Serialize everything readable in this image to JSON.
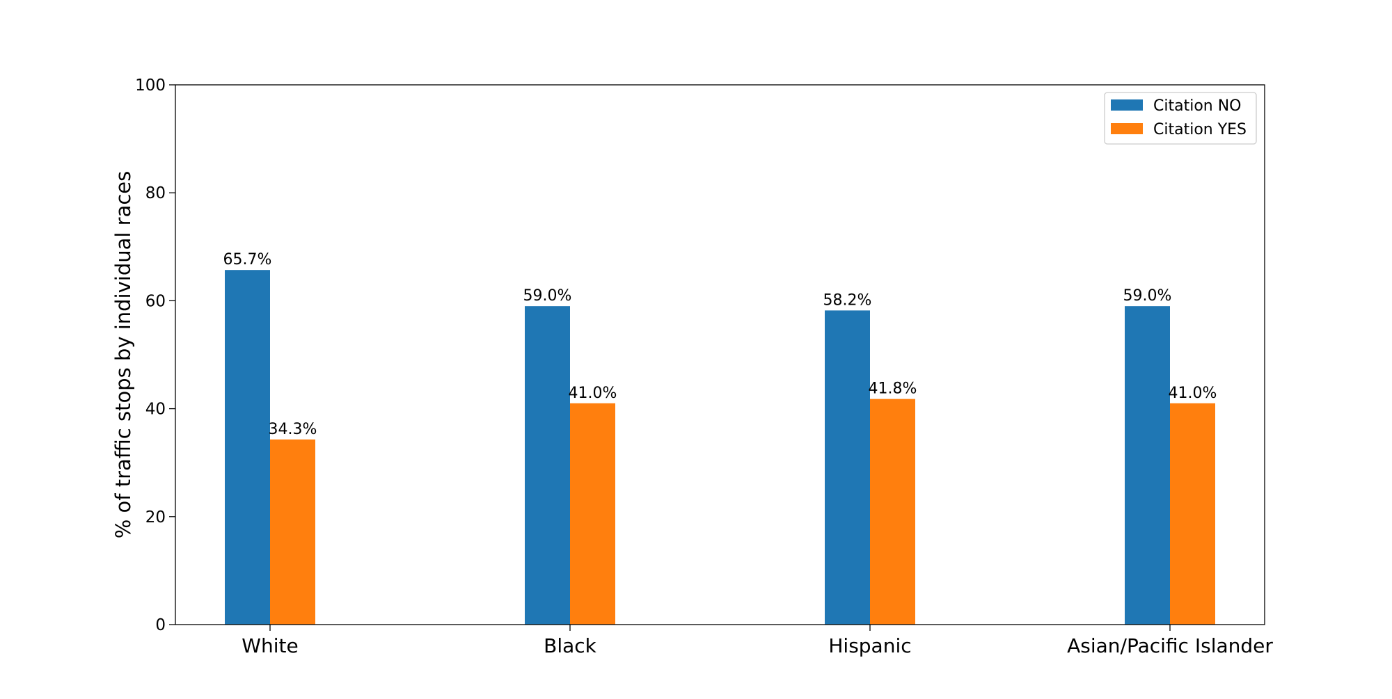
{
  "chart_data": {
    "type": "bar",
    "title": "",
    "xlabel": "",
    "ylabel": "% of traffic stops by individual races",
    "ylim": [
      0,
      100
    ],
    "yticks": [
      0,
      20,
      40,
      60,
      80,
      100
    ],
    "grid": false,
    "legend_position": "top-right",
    "categories": [
      "White",
      "Black",
      "Hispanic",
      "Asian/Pacific Islander"
    ],
    "series": [
      {
        "name": "Citation NO",
        "color": "#1f77b4",
        "values": [
          65.7,
          59.0,
          58.2,
          59.0
        ],
        "labels": [
          "65.7%",
          "59.0%",
          "58.2%",
          "59.0%"
        ]
      },
      {
        "name": "Citation YES",
        "color": "#ff7f0e",
        "values": [
          34.3,
          41.0,
          41.8,
          41.0
        ],
        "labels": [
          "34.3%",
          "41.0%",
          "41.8%",
          "41.0%"
        ]
      }
    ]
  }
}
